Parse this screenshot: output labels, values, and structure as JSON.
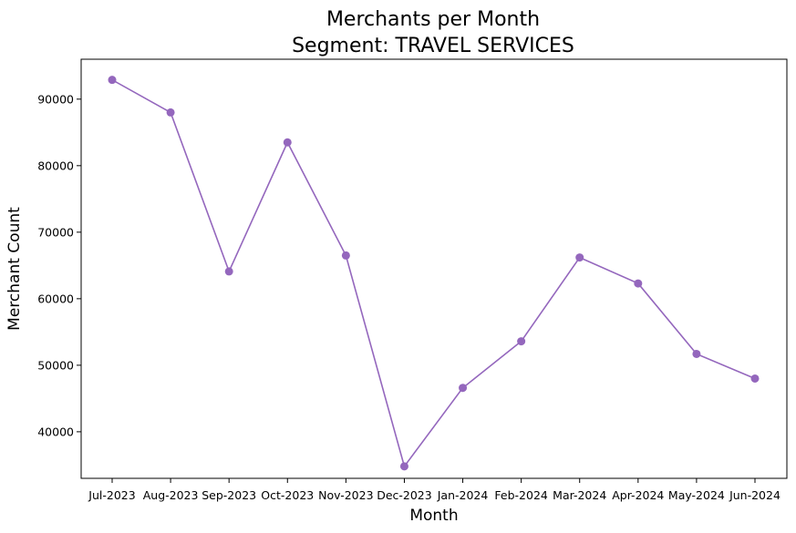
{
  "chart_data": {
    "type": "line",
    "title": "Merchants per Month",
    "subtitle": "Segment: TRAVEL SERVICES",
    "xlabel": "Month",
    "ylabel": "Merchant Count",
    "categories": [
      "Jul-2023",
      "Aug-2023",
      "Sep-2023",
      "Oct-2023",
      "Nov-2023",
      "Dec-2023",
      "Jan-2024",
      "Feb-2024",
      "Mar-2024",
      "Apr-2024",
      "May-2024",
      "Jun-2024"
    ],
    "series": [
      {
        "values": [
          92900,
          88000,
          64100,
          83500,
          66500,
          34800,
          46600,
          53600,
          66200,
          62300,
          51700,
          48000
        ],
        "color": "#9467bd",
        "marker": "circle"
      }
    ],
    "ylim": [
      33000,
      96000
    ],
    "yticks": [
      40000,
      50000,
      60000,
      70000,
      80000,
      90000
    ],
    "grid": false,
    "legend": "none"
  }
}
